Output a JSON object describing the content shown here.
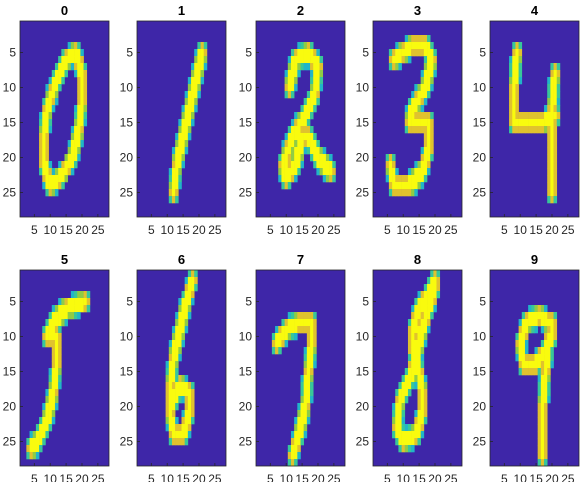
{
  "chart_data": {
    "type": "heatmap",
    "colormap": "parula",
    "background_color": "#3E26A8",
    "stroke_color": "#F9FB0E",
    "edge_colors": [
      "#21B5C8",
      "#38C79A",
      "#8FCC45",
      "#E0C22E"
    ],
    "image_size": [
      28,
      28
    ],
    "xticks": [
      5,
      10,
      15,
      20,
      25
    ],
    "yticks": [
      5,
      10,
      15,
      20,
      25
    ],
    "xtick_labels": [
      "5",
      "10",
      "15",
      "20",
      "25"
    ],
    "ytick_labels": [
      "5",
      "10",
      "15",
      "20",
      "25"
    ],
    "panels": [
      {
        "title": "0"
      },
      {
        "title": "1"
      },
      {
        "title": "2"
      },
      {
        "title": "3"
      },
      {
        "title": "4"
      },
      {
        "title": "5"
      },
      {
        "title": "6"
      },
      {
        "title": "7"
      },
      {
        "title": "8"
      },
      {
        "title": "9"
      }
    ]
  }
}
